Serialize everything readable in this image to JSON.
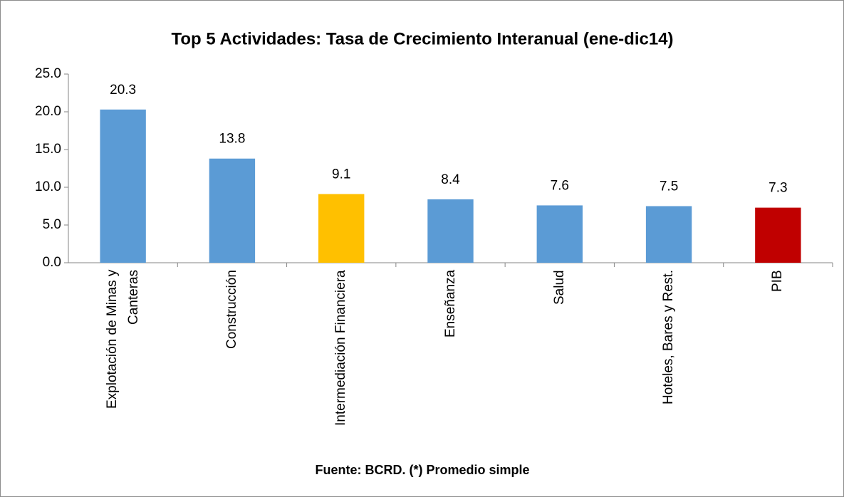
{
  "chart_data": {
    "type": "bar",
    "title": "Top 5 Actividades: Tasa de Crecimiento Interanual (ene-dic14)",
    "categories": [
      "Explotación de Minas y Canteras",
      "Construcción",
      "Intermediación Financiera",
      "Enseñanza",
      "Salud",
      "Hoteles, Bares y Rest.",
      "PIB"
    ],
    "values": [
      20.3,
      13.8,
      9.1,
      8.4,
      7.6,
      7.5,
      7.3
    ],
    "colors": [
      "#5b9bd5",
      "#5b9bd5",
      "#ffc000",
      "#5b9bd5",
      "#5b9bd5",
      "#5b9bd5",
      "#c00000"
    ],
    "ylim": [
      0,
      25
    ],
    "yticks": [
      {
        "value": 0,
        "label": "0.0"
      },
      {
        "value": 5,
        "label": "5.0"
      },
      {
        "value": 10,
        "label": "10.0"
      },
      {
        "value": 15,
        "label": "15.0"
      },
      {
        "value": 20,
        "label": "20.0"
      },
      {
        "value": 25,
        "label": "25.0"
      }
    ],
    "note": "Fuente: BCRD. (*) Promedio simple"
  }
}
